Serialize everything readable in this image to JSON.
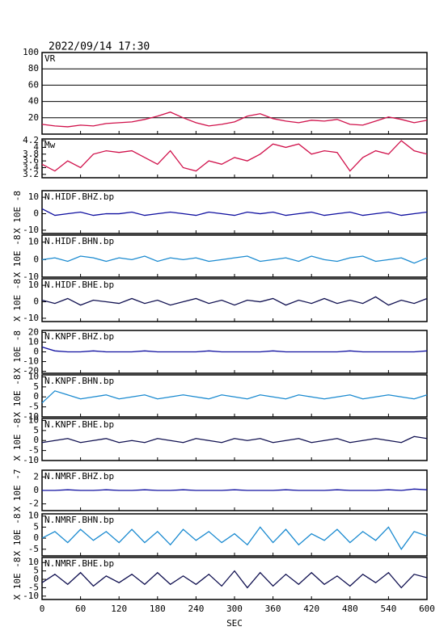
{
  "title": "2022/09/14  17:30",
  "chart_data": [
    {
      "type": "line",
      "name": "VR",
      "ylim": [
        0,
        100
      ],
      "yticks": [
        20,
        40,
        60,
        80,
        100
      ],
      "grid": true,
      "x": [
        0,
        20,
        40,
        60,
        80,
        100,
        120,
        140,
        160,
        180,
        200,
        220,
        240,
        260,
        280,
        300,
        320,
        340,
        360,
        380,
        400,
        420,
        440,
        460,
        480,
        500,
        520,
        540,
        560,
        580,
        600
      ],
      "series": [
        {
          "color": "#d0104a",
          "values": [
            12,
            10,
            9,
            11,
            10,
            13,
            14,
            15,
            18,
            22,
            27,
            20,
            14,
            10,
            12,
            15,
            22,
            25,
            19,
            16,
            14,
            17,
            16,
            18,
            12,
            11,
            16,
            21,
            18,
            14,
            17
          ]
        }
      ]
    },
    {
      "type": "line",
      "name": "Mw",
      "ylim": [
        3.1,
        4.25
      ],
      "yticks": [
        3.2,
        3.4,
        3.6,
        3.8,
        4,
        4.2
      ],
      "x": [
        0,
        20,
        40,
        60,
        80,
        100,
        120,
        140,
        160,
        180,
        200,
        220,
        240,
        260,
        280,
        300,
        320,
        340,
        360,
        380,
        400,
        420,
        440,
        460,
        480,
        500,
        520,
        540,
        560,
        580,
        600
      ],
      "series": [
        {
          "color": "#d0104a",
          "values": [
            3.5,
            3.3,
            3.6,
            3.4,
            3.8,
            3.9,
            3.85,
            3.9,
            3.7,
            3.5,
            3.9,
            3.4,
            3.3,
            3.6,
            3.5,
            3.7,
            3.6,
            3.8,
            4.1,
            4.0,
            4.1,
            3.8,
            3.9,
            3.85,
            3.3,
            3.7,
            3.9,
            3.8,
            4.2,
            3.9,
            3.8
          ]
        }
      ]
    },
    {
      "type": "line",
      "name": "N.HIDF.BHZ.bp",
      "ylabel": "X 10E -8",
      "ylim": [
        -12,
        14
      ],
      "yticks": [
        -10,
        0,
        10
      ],
      "x": [
        0,
        20,
        40,
        60,
        80,
        100,
        120,
        140,
        160,
        180,
        200,
        220,
        240,
        260,
        280,
        300,
        320,
        340,
        360,
        380,
        400,
        420,
        440,
        460,
        480,
        500,
        520,
        540,
        560,
        580,
        600
      ],
      "series": [
        {
          "color": "#1010a0",
          "values": [
            3,
            -1,
            0,
            1,
            -1,
            0,
            0,
            1,
            -1,
            0,
            1,
            0,
            -1,
            1,
            0,
            -1,
            1,
            0,
            1,
            -1,
            0,
            1,
            -1,
            0,
            1,
            -1,
            0,
            1,
            -1,
            0,
            1
          ]
        }
      ]
    },
    {
      "type": "line",
      "name": "N.HIDF.BHN.bp",
      "ylabel": "X 10E -8",
      "ylim": [
        -10,
        14
      ],
      "yticks": [
        -10,
        0,
        10
      ],
      "x": [
        0,
        20,
        40,
        60,
        80,
        100,
        120,
        140,
        160,
        180,
        200,
        220,
        240,
        260,
        280,
        300,
        320,
        340,
        360,
        380,
        400,
        420,
        440,
        460,
        480,
        500,
        520,
        540,
        560,
        580,
        600
      ],
      "series": [
        {
          "color": "#1a8ad0",
          "values": [
            0,
            1,
            -1,
            2,
            1,
            -1,
            1,
            0,
            2,
            -1,
            1,
            0,
            1,
            -1,
            0,
            1,
            2,
            -1,
            0,
            1,
            -1,
            2,
            0,
            -1,
            1,
            2,
            -1,
            0,
            1,
            -2,
            1
          ]
        }
      ]
    },
    {
      "type": "line",
      "name": "N.HIDF.BHE.bp",
      "ylabel": "X 10E -8",
      "ylim": [
        -12,
        14
      ],
      "yticks": [
        -10,
        0,
        10
      ],
      "x": [
        0,
        20,
        40,
        60,
        80,
        100,
        120,
        140,
        160,
        180,
        200,
        220,
        240,
        260,
        280,
        300,
        320,
        340,
        360,
        380,
        400,
        420,
        440,
        460,
        480,
        500,
        520,
        540,
        560,
        580,
        600
      ],
      "series": [
        {
          "color": "#101050",
          "values": [
            1,
            -1,
            2,
            -2,
            1,
            0,
            -1,
            2,
            -1,
            1,
            -2,
            0,
            2,
            -1,
            1,
            -2,
            1,
            0,
            2,
            -2,
            1,
            -1,
            2,
            -1,
            1,
            -1,
            3,
            -2,
            1,
            -1,
            2
          ]
        }
      ]
    },
    {
      "type": "line",
      "name": "N.KNPF.BHZ.bp",
      "ylabel": "X 10E -8",
      "ylim": [
        -22,
        22
      ],
      "yticks": [
        -20,
        -10,
        0,
        10,
        20
      ],
      "x": [
        0,
        20,
        40,
        60,
        80,
        100,
        120,
        140,
        160,
        180,
        200,
        220,
        240,
        260,
        280,
        300,
        320,
        340,
        360,
        380,
        400,
        420,
        440,
        460,
        480,
        500,
        520,
        540,
        560,
        580,
        600
      ],
      "series": [
        {
          "color": "#1010a0",
          "values": [
            5,
            1,
            0,
            0,
            1,
            0,
            0,
            0,
            1,
            0,
            0,
            0,
            0,
            1,
            0,
            0,
            0,
            0,
            1,
            0,
            0,
            0,
            0,
            0,
            1,
            0,
            0,
            0,
            0,
            0,
            1
          ]
        }
      ]
    },
    {
      "type": "line",
      "name": "N.KNPF.BHN.bp",
      "ylabel": "X 10E -8",
      "ylim": [
        -10,
        11
      ],
      "yticks": [
        -10,
        -5,
        0,
        5,
        10
      ],
      "x": [
        0,
        20,
        40,
        60,
        80,
        100,
        120,
        140,
        160,
        180,
        200,
        220,
        240,
        260,
        280,
        300,
        320,
        340,
        360,
        380,
        400,
        420,
        440,
        460,
        480,
        500,
        520,
        540,
        560,
        580,
        600
      ],
      "series": [
        {
          "color": "#1a8ad0",
          "values": [
            -3,
            3,
            1,
            -1,
            0,
            1,
            -1,
            0,
            1,
            -1,
            0,
            1,
            0,
            -1,
            1,
            0,
            -1,
            1,
            0,
            -1,
            1,
            0,
            -1,
            0,
            1,
            -1,
            0,
            1,
            0,
            -1,
            1
          ]
        }
      ]
    },
    {
      "type": "line",
      "name": "N.KNPF.BHE.bp",
      "ylabel": "X 10E -8",
      "ylim": [
        -10,
        11
      ],
      "yticks": [
        -10,
        -5,
        0,
        5,
        10
      ],
      "x": [
        0,
        20,
        40,
        60,
        80,
        100,
        120,
        140,
        160,
        180,
        200,
        220,
        240,
        260,
        280,
        300,
        320,
        340,
        360,
        380,
        400,
        420,
        440,
        460,
        480,
        500,
        520,
        540,
        560,
        580,
        600
      ],
      "series": [
        {
          "color": "#101050",
          "values": [
            -1,
            0,
            1,
            -1,
            0,
            1,
            -1,
            0,
            -1,
            1,
            0,
            -1,
            1,
            0,
            -1,
            1,
            0,
            1,
            -1,
            0,
            1,
            -1,
            0,
            1,
            -1,
            0,
            1,
            0,
            -1,
            2,
            1
          ]
        }
      ]
    },
    {
      "type": "line",
      "name": "N.NMRF.BHZ.bp",
      "ylabel": "X 10E -7",
      "ylim": [
        -3,
        3
      ],
      "yticks": [
        -2,
        0,
        2
      ],
      "x": [
        0,
        20,
        40,
        60,
        80,
        100,
        120,
        140,
        160,
        180,
        200,
        220,
        240,
        260,
        280,
        300,
        320,
        340,
        360,
        380,
        400,
        420,
        440,
        460,
        480,
        500,
        520,
        540,
        560,
        580,
        600
      ],
      "series": [
        {
          "color": "#1010a0",
          "values": [
            0,
            0,
            0.1,
            0,
            0,
            0.1,
            0,
            0,
            0.1,
            0,
            0,
            0.1,
            0,
            0,
            0,
            0.1,
            0,
            0,
            0,
            0.1,
            0,
            0,
            0,
            0.1,
            0,
            0,
            0,
            0.1,
            0,
            0.2,
            0.1
          ]
        }
      ]
    },
    {
      "type": "line",
      "name": "N.NMRF.BHN.bp",
      "ylabel": "X 10E -8",
      "ylim": [
        -8,
        11
      ],
      "yticks": [
        -5,
        0,
        5,
        10
      ],
      "x": [
        0,
        20,
        40,
        60,
        80,
        100,
        120,
        140,
        160,
        180,
        200,
        220,
        240,
        260,
        280,
        300,
        320,
        340,
        360,
        380,
        400,
        420,
        440,
        460,
        480,
        500,
        520,
        540,
        560,
        580,
        600
      ],
      "series": [
        {
          "color": "#1a8ad0",
          "values": [
            0,
            3,
            -2,
            4,
            -1,
            3,
            -2,
            4,
            -2,
            3,
            -3,
            4,
            -1,
            3,
            -2,
            2,
            -3,
            5,
            -2,
            4,
            -3,
            2,
            -1,
            4,
            -2,
            3,
            -1,
            5,
            -5,
            3,
            1
          ]
        }
      ]
    },
    {
      "type": "line",
      "name": "N.NMRF.BHE.bp",
      "ylabel": "X 10E -8",
      "ylim": [
        -12,
        13
      ],
      "yticks": [
        -10,
        -5,
        0,
        5,
        10
      ],
      "x": [
        0,
        20,
        40,
        60,
        80,
        100,
        120,
        140,
        160,
        180,
        200,
        220,
        240,
        260,
        280,
        300,
        320,
        340,
        360,
        380,
        400,
        420,
        440,
        460,
        480,
        500,
        520,
        540,
        560,
        580,
        600
      ],
      "xlim": [
        0,
        600
      ],
      "xticks": [
        0,
        60,
        120,
        180,
        240,
        300,
        360,
        420,
        480,
        540,
        600
      ],
      "xlabel": "SEC",
      "series": [
        {
          "color": "#101050",
          "values": [
            -2,
            3,
            -3,
            4,
            -4,
            2,
            -2,
            3,
            -3,
            4,
            -3,
            2,
            -3,
            3,
            -4,
            5,
            -5,
            4,
            -4,
            3,
            -3,
            4,
            -3,
            2,
            -4,
            3,
            -2,
            4,
            -5,
            3,
            1
          ]
        }
      ]
    }
  ]
}
